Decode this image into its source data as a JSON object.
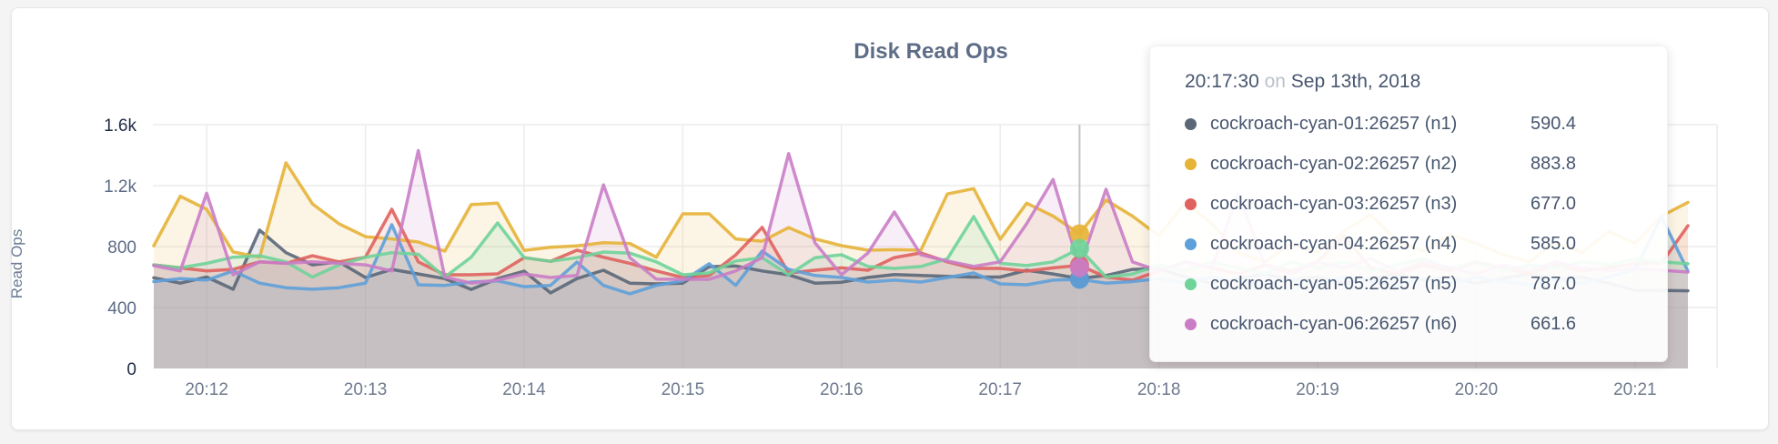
{
  "chart_data": {
    "type": "line",
    "title": "Disk Read Ops",
    "ylabel": "Read Ops",
    "x_start": "20:11:40",
    "x_interval_seconds": 10,
    "x_ticks": [
      "20:12",
      "20:13",
      "20:14",
      "20:15",
      "20:16",
      "20:17",
      "20:18",
      "20:19",
      "20:20",
      "20:21"
    ],
    "y_tick_labels": [
      "0",
      "400",
      "800",
      "1.2k",
      "1.6k"
    ],
    "y_tick_values": [
      0,
      400,
      800,
      1200,
      1600
    ],
    "ylim": [
      0,
      1600
    ],
    "grid": true,
    "hover_index": 35,
    "hover_line_color": "#c4c4c4",
    "series": [
      {
        "name": "cockroach-cyan-01:26257 (n1)",
        "node": "n1",
        "color": "#5a6779",
        "values": [
          595,
          560,
          600,
          520,
          908,
          760,
          680,
          700,
          597,
          650,
          620,
          590,
          519,
          590,
          639,
          496,
          590,
          645,
          560,
          555,
          560,
          668,
          672,
          640,
          615,
          560,
          566,
          597,
          616,
          610,
          605,
          600,
          600,
          645,
          620,
          590.4,
          610,
          650,
          657,
          600,
          560,
          590,
          620,
          580,
          600,
          560,
          590,
          620,
          580,
          600,
          560,
          590,
          620,
          580,
          600,
          560,
          513,
          512,
          510
        ]
      },
      {
        "name": "cockroach-cyan-02:26257 (n2)",
        "node": "n2",
        "color": "#e6b337",
        "values": [
          805,
          1130,
          1045,
          765,
          730,
          1350,
          1080,
          950,
          865,
          850,
          830,
          770,
          1075,
          1085,
          775,
          795,
          805,
          825,
          820,
          730,
          1015,
          1015,
          850,
          835,
          925,
          850,
          806,
          776,
          780,
          776,
          1145,
          1180,
          848,
          1085,
          1000,
          883.8,
          1105,
          1000,
          870,
          1090,
          950,
          760,
          700,
          820,
          760,
          900,
          1010,
          840,
          770,
          880,
          820,
          750,
          700,
          830,
          760,
          900,
          820,
          1000,
          1090
        ]
      },
      {
        "name": "cockroach-cyan-03:26257 (n3)",
        "node": "n3",
        "color": "#df625e",
        "values": [
          680,
          660,
          640,
          650,
          700,
          690,
          740,
          700,
          730,
          1045,
          700,
          615,
          615,
          621,
          727,
          703,
          776,
          730,
          690,
          640,
          597,
          610,
          745,
          926,
          627,
          645,
          660,
          645,
          728,
          758,
          700,
          657,
          657,
          639,
          660,
          677,
          600,
          580,
          640,
          700,
          660,
          620,
          680,
          640,
          700,
          870,
          660,
          620,
          680,
          640,
          700,
          660,
          620,
          680,
          640,
          660,
          687,
          690,
          937
        ]
      },
      {
        "name": "cockroach-cyan-04:26257 (n4)",
        "node": "n4",
        "color": "#5ea0d9",
        "values": [
          570,
          590,
          580,
          640,
          560,
          530,
          520,
          530,
          560,
          943,
          549,
          545,
          567,
          575,
          537,
          545,
          698,
          545,
          490,
          545,
          575,
          687,
          545,
          770,
          650,
          610,
          597,
          567,
          580,
          567,
          597,
          627,
          555,
          549,
          580,
          585,
          560,
          570,
          590,
          560,
          600,
          570,
          550,
          590,
          560,
          600,
          570,
          550,
          590,
          560,
          600,
          570,
          550,
          590,
          560,
          600,
          650,
          995,
          639
        ]
      },
      {
        "name": "cockroach-cyan-05:26257 (n5)",
        "node": "n5",
        "color": "#6fd39a",
        "values": [
          680,
          660,
          690,
          730,
          740,
          700,
          600,
          680,
          730,
          760,
          750,
          600,
          730,
          955,
          727,
          703,
          727,
          764,
          757,
          700,
          615,
          627,
          705,
          727,
          615,
          727,
          746,
          669,
          657,
          669,
          720,
          997,
          690,
          675,
          700,
          787,
          600,
          620,
          680,
          640,
          700,
          660,
          620,
          700,
          660,
          700,
          640,
          680,
          720,
          660,
          700,
          640,
          680,
          660,
          700,
          680,
          716,
          700,
          687
        ]
      },
      {
        "name": "cockroach-cyan-06:26257 (n6)",
        "node": "n6",
        "color": "#ca7dc6",
        "values": [
          675,
          640,
          1150,
          615,
          700,
          690,
          700,
          690,
          680,
          640,
          1430,
          600,
          560,
          580,
          620,
          597,
          610,
          1205,
          727,
          586,
          585,
          585,
          640,
          727,
          1410,
          824,
          615,
          758,
          1027,
          746,
          705,
          669,
          700,
          950,
          1240,
          661.6,
          1176,
          700,
          640,
          700,
          660,
          1150,
          680,
          620,
          700,
          660,
          720,
          640,
          700,
          660,
          620,
          680,
          640,
          700,
          660,
          640,
          657,
          645,
          633
        ]
      }
    ]
  },
  "tooltip": {
    "time": "20:17:30",
    "on_word": "on",
    "date": "Sep 13th, 2018",
    "rows": [
      {
        "label": "cockroach-cyan-01:26257 (n1)",
        "value": "590.4"
      },
      {
        "label": "cockroach-cyan-02:26257 (n2)",
        "value": "883.8"
      },
      {
        "label": "cockroach-cyan-03:26257 (n3)",
        "value": "677.0"
      },
      {
        "label": "cockroach-cyan-04:26257 (n4)",
        "value": "585.0"
      },
      {
        "label": "cockroach-cyan-05:26257 (n5)",
        "value": "787.0"
      },
      {
        "label": "cockroach-cyan-06:26257 (n6)",
        "value": "661.6"
      }
    ]
  },
  "colors": {
    "title": "#5e6d87",
    "axis_tick": "#5d6b85",
    "axis_endpoint": "#1d2b45",
    "gridline": "#ececec",
    "card_background": "#ffffff",
    "page_background": "#f4f4f5"
  }
}
